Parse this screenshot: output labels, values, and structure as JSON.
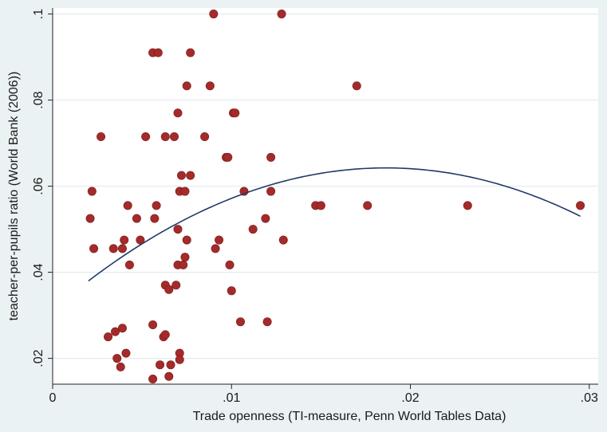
{
  "colors": {
    "background": "#eaf2f3",
    "plot_background": "#ffffff",
    "grid": "#e3ebee",
    "point": "#a52a2a",
    "point_edge": "#7a1d1d",
    "fit_line": "#1f3a68"
  },
  "chart_data": {
    "type": "scatter",
    "title": "",
    "xlabel": "Trade openness  (TI-measure, Penn World Tables Data)",
    "ylabel": "teacher-per-pupils ratio (World Bank (2006))",
    "xlim": [
      0,
      0.0305
    ],
    "ylim": [
      0.014,
      0.1014
    ],
    "x_ticks": [
      {
        "value": 0,
        "label": "0"
      },
      {
        "value": 0.01,
        "label": ".01"
      },
      {
        "value": 0.02,
        "label": ".02"
      },
      {
        "value": 0.03,
        "label": ".03"
      }
    ],
    "y_ticks": [
      {
        "value": 0.02,
        "label": ".02"
      },
      {
        "value": 0.04,
        "label": ".04"
      },
      {
        "value": 0.06,
        "label": ".06"
      },
      {
        "value": 0.08,
        "label": ".08"
      },
      {
        "value": 0.1,
        "label": ".1"
      }
    ],
    "grid": true,
    "legend": "none",
    "fit": {
      "type": "quadratic",
      "x_range": [
        0.002,
        0.0295
      ],
      "points": [
        [
          0.002,
          0.0375
        ],
        [
          0.005,
          0.047
        ],
        [
          0.01,
          0.0575
        ],
        [
          0.015,
          0.0632
        ],
        [
          0.019,
          0.0641
        ],
        [
          0.024,
          0.0607
        ],
        [
          0.0295,
          0.0535
        ]
      ]
    },
    "points": [
      [
        0.0021,
        0.0525
      ],
      [
        0.0022,
        0.0588
      ],
      [
        0.0023,
        0.0455
      ],
      [
        0.0027,
        0.0715
      ],
      [
        0.0031,
        0.025
      ],
      [
        0.0034,
        0.0455
      ],
      [
        0.0035,
        0.0262
      ],
      [
        0.0036,
        0.02
      ],
      [
        0.0038,
        0.018
      ],
      [
        0.0039,
        0.027
      ],
      [
        0.0039,
        0.0455
      ],
      [
        0.004,
        0.0475
      ],
      [
        0.0041,
        0.0212
      ],
      [
        0.0042,
        0.0555
      ],
      [
        0.0043,
        0.0417
      ],
      [
        0.0047,
        0.0525
      ],
      [
        0.0049,
        0.0475
      ],
      [
        0.0052,
        0.0715
      ],
      [
        0.0056,
        0.091
      ],
      [
        0.0056,
        0.0152
      ],
      [
        0.0056,
        0.0278
      ],
      [
        0.0057,
        0.0525
      ],
      [
        0.0058,
        0.0555
      ],
      [
        0.0059,
        0.091
      ],
      [
        0.006,
        0.0185
      ],
      [
        0.0062,
        0.025
      ],
      [
        0.0063,
        0.0715
      ],
      [
        0.0063,
        0.0255
      ],
      [
        0.0063,
        0.037
      ],
      [
        0.0065,
        0.036
      ],
      [
        0.0065,
        0.0158
      ],
      [
        0.0066,
        0.0185
      ],
      [
        0.0068,
        0.0715
      ],
      [
        0.0069,
        0.037
      ],
      [
        0.007,
        0.0417
      ],
      [
        0.007,
        0.05
      ],
      [
        0.007,
        0.077
      ],
      [
        0.0071,
        0.0212
      ],
      [
        0.0071,
        0.0197
      ],
      [
        0.0071,
        0.0588
      ],
      [
        0.0072,
        0.0625
      ],
      [
        0.0073,
        0.0417
      ],
      [
        0.0074,
        0.0435
      ],
      [
        0.0074,
        0.0588
      ],
      [
        0.0075,
        0.0833
      ],
      [
        0.0075,
        0.0475
      ],
      [
        0.0077,
        0.0625
      ],
      [
        0.0077,
        0.091
      ],
      [
        0.0085,
        0.0715
      ],
      [
        0.0088,
        0.0833
      ],
      [
        0.009,
        0.1
      ],
      [
        0.0091,
        0.0455
      ],
      [
        0.0093,
        0.0475
      ],
      [
        0.0097,
        0.0667
      ],
      [
        0.0098,
        0.0667
      ],
      [
        0.0099,
        0.0417
      ],
      [
        0.01,
        0.0357
      ],
      [
        0.0101,
        0.077
      ],
      [
        0.0102,
        0.077
      ],
      [
        0.0105,
        0.0285
      ],
      [
        0.0107,
        0.0588
      ],
      [
        0.0112,
        0.05
      ],
      [
        0.0119,
        0.0525
      ],
      [
        0.012,
        0.0285
      ],
      [
        0.0122,
        0.0588
      ],
      [
        0.0122,
        0.0667
      ],
      [
        0.0128,
        0.1
      ],
      [
        0.0129,
        0.0475
      ],
      [
        0.0147,
        0.0555
      ],
      [
        0.015,
        0.0555
      ],
      [
        0.017,
        0.0833
      ],
      [
        0.0176,
        0.0555
      ],
      [
        0.0232,
        0.0555
      ],
      [
        0.0295,
        0.0555
      ]
    ]
  }
}
